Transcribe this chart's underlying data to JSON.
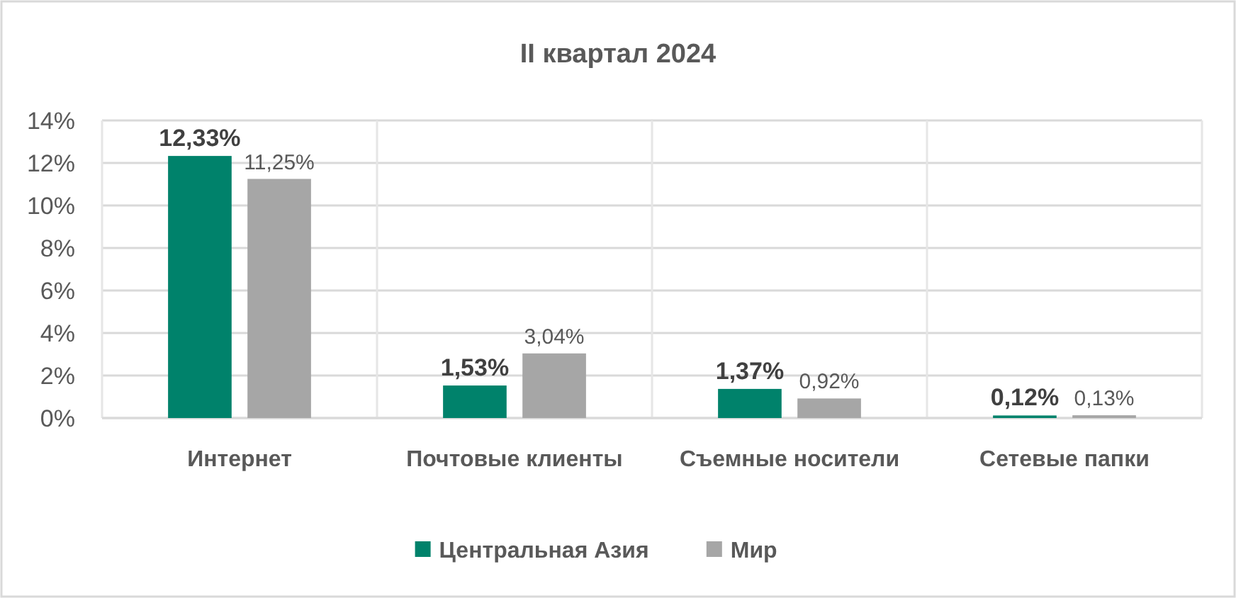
{
  "chart_data": {
    "type": "bar",
    "title": "II квартал 2024",
    "categories": [
      "Интернет",
      "Почтовые клиенты",
      "Съемные носители",
      "Сетевые папки"
    ],
    "series": [
      {
        "name": "Центральная Азия",
        "color": "#00826b",
        "values": [
          12.33,
          1.53,
          1.37,
          0.12
        ],
        "value_labels": [
          "12,33%",
          "1,53%",
          "1,37%",
          "0,12%"
        ]
      },
      {
        "name": "Мир",
        "color": "#a6a6a6",
        "values": [
          11.25,
          3.04,
          0.92,
          0.13
        ],
        "value_labels": [
          "11,25%",
          "3,04%",
          "0,92%",
          "0,13%"
        ]
      }
    ],
    "ylim": [
      0,
      14
    ],
    "yticks": [
      {
        "value": 0,
        "label": "0%"
      },
      {
        "value": 2,
        "label": "2%"
      },
      {
        "value": 4,
        "label": "4%"
      },
      {
        "value": 6,
        "label": "6%"
      },
      {
        "value": 8,
        "label": "8%"
      },
      {
        "value": 10,
        "label": "10%"
      },
      {
        "value": 12,
        "label": "12%"
      },
      {
        "value": 14,
        "label": "14%"
      }
    ],
    "grid": true,
    "legend": "bottom"
  }
}
